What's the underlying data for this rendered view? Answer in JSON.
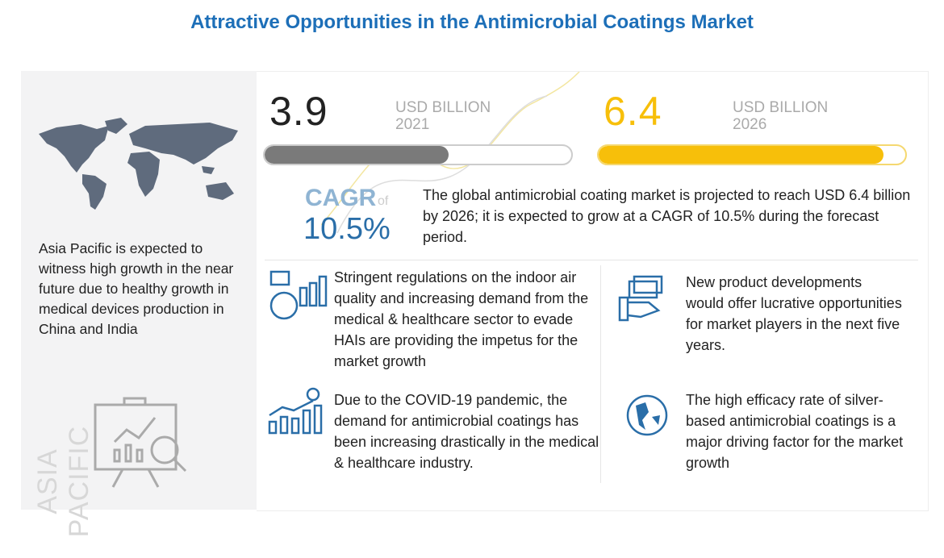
{
  "title": "Attractive Opportunities in the Antimicrobial Coatings Market",
  "region": {
    "vertical_label": "ASIA PACIFIC",
    "text": "Asia Pacific is expected to witness high growth in the near future due to healthy growth in medical devices production in China and India",
    "icons": [
      "world-map",
      "presentation-chart-magnifier-icon"
    ]
  },
  "market_2021": {
    "value": "3.9",
    "unit": "USD BILLION",
    "year": "2021",
    "bar_fill_percent": 60,
    "color": "#7a7a7a"
  },
  "market_2026": {
    "value": "6.4",
    "unit": "USD BILLION",
    "year": "2026",
    "bar_fill_percent": 93,
    "color": "#f7bf0a"
  },
  "cagr": {
    "label": "CAGR",
    "of": "of",
    "value": "10.5%",
    "color": "#2a6ea8",
    "text": "The global antimicrobial coating market is projected to reach USD 6.4 billion by 2026; it is expected to grow at a CAGR of 10.5% during the forecast period."
  },
  "drivers": [
    {
      "icon": "regulation-chart-icon",
      "text": "Stringent regulations on the indoor air quality and increasing demand from the medical & healthcare sector to evade HAIs are providing the impetus for the market growth"
    },
    {
      "icon": "money-hand-icon",
      "text": "New product developments would offer lucrative opportunities for market players in the next five years."
    },
    {
      "icon": "growth-bars-dollar-icon",
      "text": "Due to the COVID-19 pandemic, the demand for antimicrobial coatings has been increasing drastically in the medical & healthcare industry."
    },
    {
      "icon": "globe-icon",
      "text": "The high efficacy rate of silver-based antimicrobial coatings is a major driving factor for the market growth"
    }
  ]
}
